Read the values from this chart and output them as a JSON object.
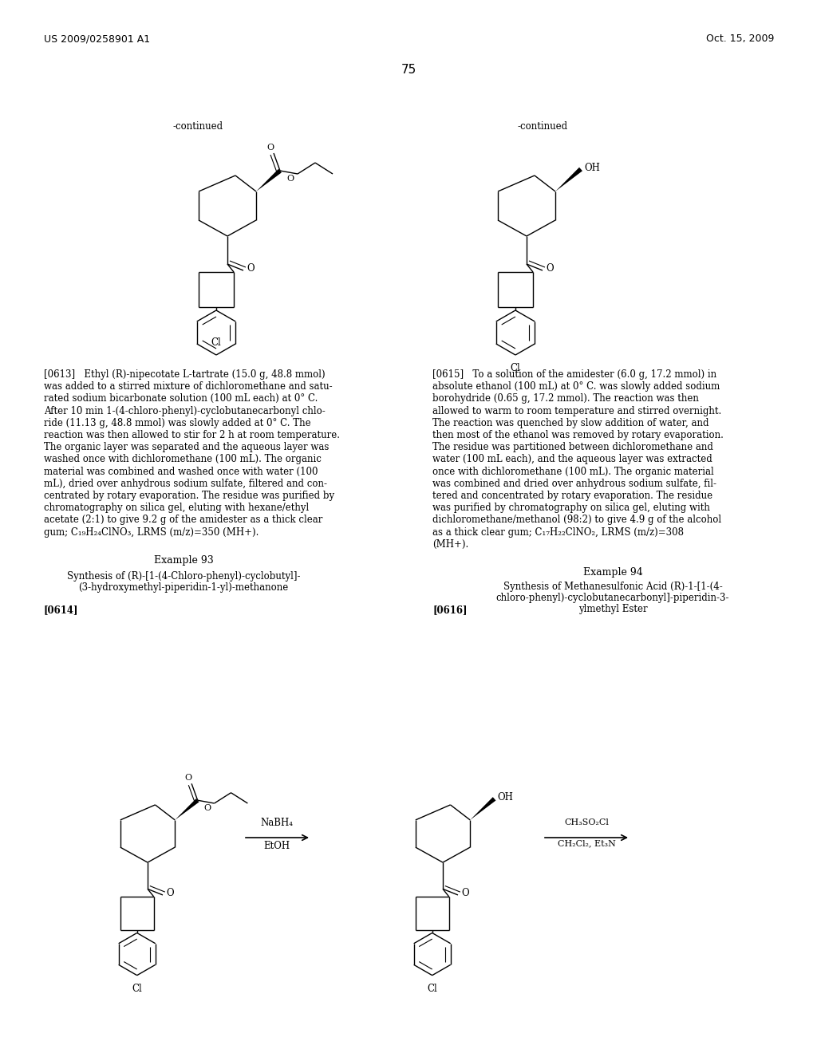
{
  "header_left": "US 2009/0258901 A1",
  "header_right": "Oct. 15, 2009",
  "page_number": "75",
  "continued_left": "-continued",
  "continued_right": "-continued",
  "background_color": "#ffffff",
  "text_color": "#000000",
  "para0613_lines": [
    "[0613]   Ethyl (R)-nipecotate L-tartrate (15.0 g, 48.8 mmol)",
    "was added to a stirred mixture of dichloromethane and satu-",
    "rated sodium bicarbonate solution (100 mL each) at 0° C.",
    "After 10 min 1-(4-chloro-phenyl)-cyclobutanecarbonyl chlo-",
    "ride (11.13 g, 48.8 mmol) was slowly added at 0° C. The",
    "reaction was then allowed to stir for 2 h at room temperature.",
    "The organic layer was separated and the aqueous layer was",
    "washed once with dichloromethane (100 mL). The organic",
    "material was combined and washed once with water (100",
    "mL), dried over anhydrous sodium sulfate, filtered and con-",
    "centrated by rotary evaporation. The residue was purified by",
    "chromatography on silica gel, eluting with hexane/ethyl",
    "acetate (2:1) to give 9.2 g of the amidester as a thick clear",
    "gum; C₁₉H₂₄ClNO₃, LRMS (m/z)=350 (MH+)."
  ],
  "para0615_lines": [
    "[0615]   To a solution of the amidester (6.0 g, 17.2 mmol) in",
    "absolute ethanol (100 mL) at 0° C. was slowly added sodium",
    "borohydride (0.65 g, 17.2 mmol). The reaction was then",
    "allowed to warm to room temperature and stirred overnight.",
    "The reaction was quenched by slow addition of water, and",
    "then most of the ethanol was removed by rotary evaporation.",
    "The residue was partitioned between dichloromethane and",
    "water (100 mL each), and the aqueous layer was extracted",
    "once with dichloromethane (100 mL). The organic material",
    "was combined and dried over anhydrous sodium sulfate, fil-",
    "tered and concentrated by rotary evaporation. The residue",
    "was purified by chromatography on silica gel, eluting with",
    "dichloromethane/methanol (98:2) to give 4.9 g of the alcohol",
    "as a thick clear gum; C₁₇H₂₂ClNO₂, LRMS (m/z)=308",
    "(MH+)."
  ],
  "example93_title": "Example 93",
  "example93_sub1": "Synthesis of (R)-[1-(4-Chloro-phenyl)-cyclobutyl]-",
  "example93_sub2": "(3-hydroxymethyl-piperidin-1-yl)-methanone",
  "example94_title": "Example 94",
  "example94_sub1": "Synthesis of Methanesulfonic Acid (R)-1-[1-(4-",
  "example94_sub2": "chloro-phenyl)-cyclobutanecarbonyl]-piperidin-3-",
  "example94_sub3": "ylmethyl Ester",
  "label0614": "[0614]",
  "label0616": "[0616]"
}
